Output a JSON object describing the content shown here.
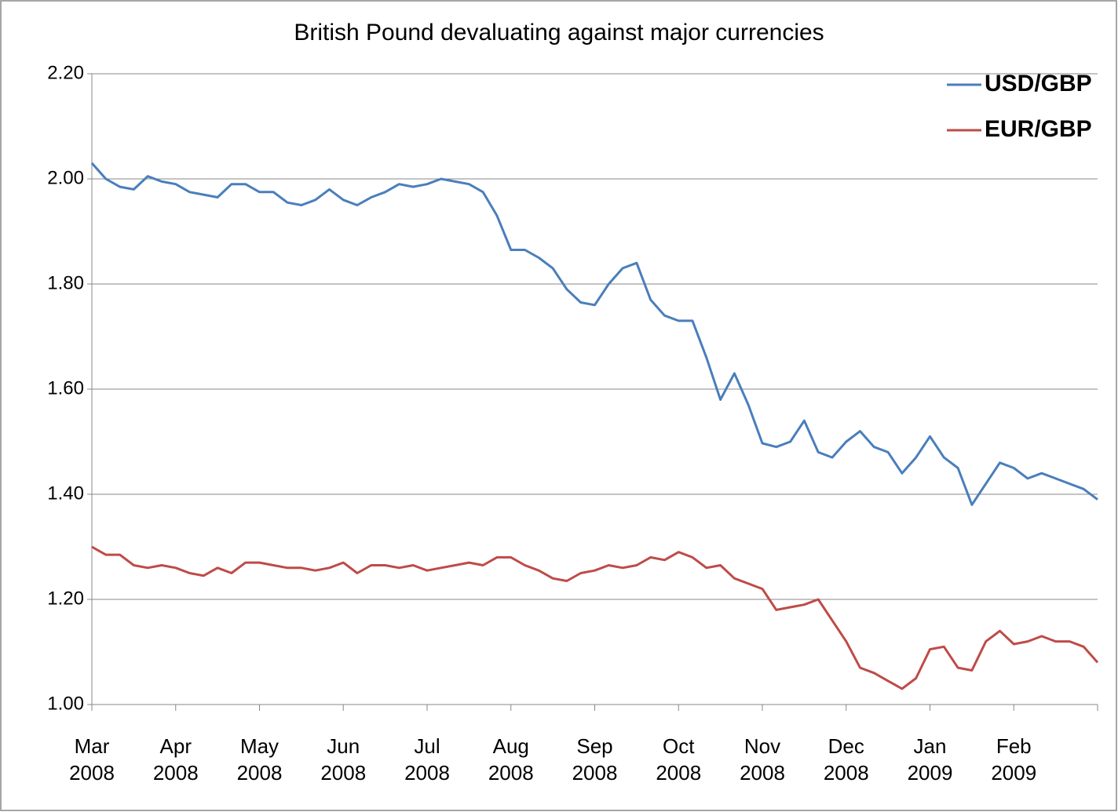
{
  "chart_data": {
    "type": "line",
    "title": "British Pound devaluating against major currencies",
    "categories": [
      "Mar 2008",
      null,
      null,
      null,
      null,
      null,
      "Apr 2008",
      null,
      null,
      null,
      null,
      null,
      "May 2008",
      null,
      null,
      null,
      null,
      null,
      "Jun 2008",
      null,
      null,
      null,
      null,
      null,
      "Jul 2008",
      null,
      null,
      null,
      null,
      null,
      "Aug 2008",
      null,
      null,
      null,
      null,
      null,
      "Sep 2008",
      null,
      null,
      null,
      null,
      null,
      "Oct 2008",
      null,
      null,
      null,
      null,
      null,
      "Nov 2008",
      null,
      null,
      null,
      null,
      null,
      "Dec 2008",
      null,
      null,
      null,
      null,
      null,
      "Jan 2009",
      null,
      null,
      null,
      null,
      null,
      "Feb 2009",
      null,
      null,
      null,
      null,
      null,
      null
    ],
    "series": [
      {
        "name": "USD/GBP",
        "color": "#4a7ebb",
        "values": [
          2.03,
          2.0,
          1.985,
          1.98,
          2.005,
          1.995,
          1.99,
          1.975,
          1.97,
          1.965,
          1.99,
          1.99,
          1.975,
          1.975,
          1.955,
          1.95,
          1.96,
          1.98,
          1.96,
          1.95,
          1.965,
          1.975,
          1.99,
          1.985,
          1.99,
          2.0,
          1.995,
          1.99,
          1.975,
          1.93,
          1.865,
          1.865,
          1.85,
          1.83,
          1.79,
          1.765,
          1.76,
          1.8,
          1.83,
          1.84,
          1.77,
          1.74,
          1.73,
          1.73,
          1.66,
          1.58,
          1.63,
          1.57,
          1.497,
          1.49,
          1.5,
          1.54,
          1.48,
          1.47,
          1.5,
          1.52,
          1.49,
          1.48,
          1.44,
          1.47,
          1.51,
          1.47,
          1.45,
          1.38,
          1.42,
          1.46,
          1.45,
          1.43,
          1.44,
          1.43,
          1.42,
          1.41,
          1.39
        ]
      },
      {
        "name": "EUR/GBP",
        "color": "#be4b48",
        "values": [
          1.3,
          1.285,
          1.285,
          1.265,
          1.26,
          1.265,
          1.26,
          1.25,
          1.245,
          1.26,
          1.25,
          1.27,
          1.27,
          1.265,
          1.26,
          1.26,
          1.255,
          1.26,
          1.27,
          1.25,
          1.265,
          1.265,
          1.26,
          1.265,
          1.255,
          1.26,
          1.265,
          1.27,
          1.265,
          1.28,
          1.28,
          1.265,
          1.255,
          1.24,
          1.235,
          1.25,
          1.255,
          1.265,
          1.26,
          1.265,
          1.28,
          1.275,
          1.29,
          1.28,
          1.26,
          1.265,
          1.24,
          1.23,
          1.22,
          1.18,
          1.185,
          1.19,
          1.2,
          1.16,
          1.12,
          1.07,
          1.06,
          1.045,
          1.03,
          1.05,
          1.105,
          1.11,
          1.07,
          1.065,
          1.12,
          1.14,
          1.115,
          1.12,
          1.13,
          1.12,
          1.12,
          1.11,
          1.08
        ]
      }
    ],
    "ylim": [
      1.0,
      2.2
    ],
    "yticks": [
      {
        "value": 1.0,
        "label": "1.00"
      },
      {
        "value": 1.2,
        "label": "1.20"
      },
      {
        "value": 1.4,
        "label": "1.40"
      },
      {
        "value": 1.6,
        "label": "1.60"
      },
      {
        "value": 1.8,
        "label": "1.80"
      },
      {
        "value": 2.0,
        "label": "2.00"
      },
      {
        "value": 2.2,
        "label": "2.20"
      }
    ],
    "grid": true,
    "legend": "top-right"
  }
}
